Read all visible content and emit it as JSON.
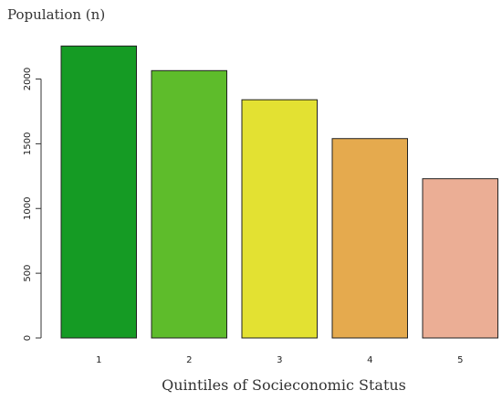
{
  "chart_data": {
    "type": "bar",
    "title": "Population (n)",
    "xlabel": "Quintiles of Socieconomic Status",
    "ylabel": "",
    "categories": [
      "1",
      "2",
      "3",
      "4",
      "5"
    ],
    "values": [
      2255,
      2065,
      1840,
      1540,
      1230
    ],
    "colors": [
      "#159B24",
      "#5EBC2B",
      "#E3E132",
      "#E5AA4E",
      "#EBAE95"
    ],
    "ylim": [
      0,
      2300
    ],
    "yticks": [
      0,
      500,
      1000,
      1500,
      2000
    ],
    "grid": false,
    "legend": "none"
  }
}
